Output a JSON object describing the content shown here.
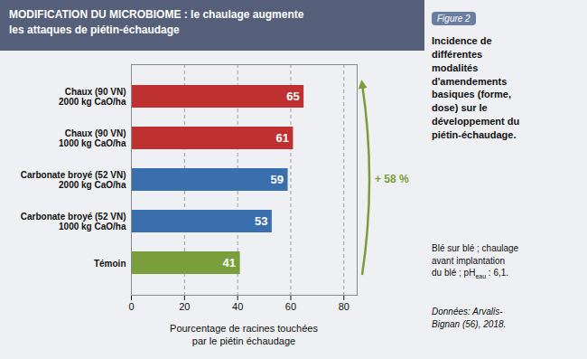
{
  "chart_data": {
    "type": "bar",
    "orientation": "horizontal",
    "title": "MODIFICATION DU MICROBIOME : le chaulage augmente\nles attaques de piétin-échaudage",
    "categories": [
      "Chaux (90 VN)\n2000 kg CaO/ha",
      "Chaux (90 VN)\n1000 kg CaO/ha",
      "Carbonate broyé (52 VN)\n2000 kg CaO/ha",
      "Carbonate broyé (52 VN)\n1000 kg CaO/ha",
      "Témoin"
    ],
    "values": [
      65,
      61,
      59,
      53,
      41
    ],
    "colors": [
      "#bf3030",
      "#bf3030",
      "#3a6fad",
      "#3a6fad",
      "#7a9e3b"
    ],
    "xlabel": "Pourcentage de racines touchées\npar le piétin échaudage",
    "xlim": [
      0,
      85
    ],
    "xticks": [
      0,
      20,
      40,
      60,
      80
    ],
    "grid": true,
    "data_labels": true,
    "annotations": [
      "+ 58 %",
      "Figure 2",
      "Incidence de\ndifférentes\nmodalités\nd'amendements\nbasiques (forme,\ndose) sur le\ndéveloppement du\npiétin-échaudage.",
      "Blé sur blé ; chaulage\navant implantation\ndu blé ; pH",
      "eau",
      " : 6,1.",
      "Données: Arvalis-\nBignan (56), 2018."
    ]
  }
}
